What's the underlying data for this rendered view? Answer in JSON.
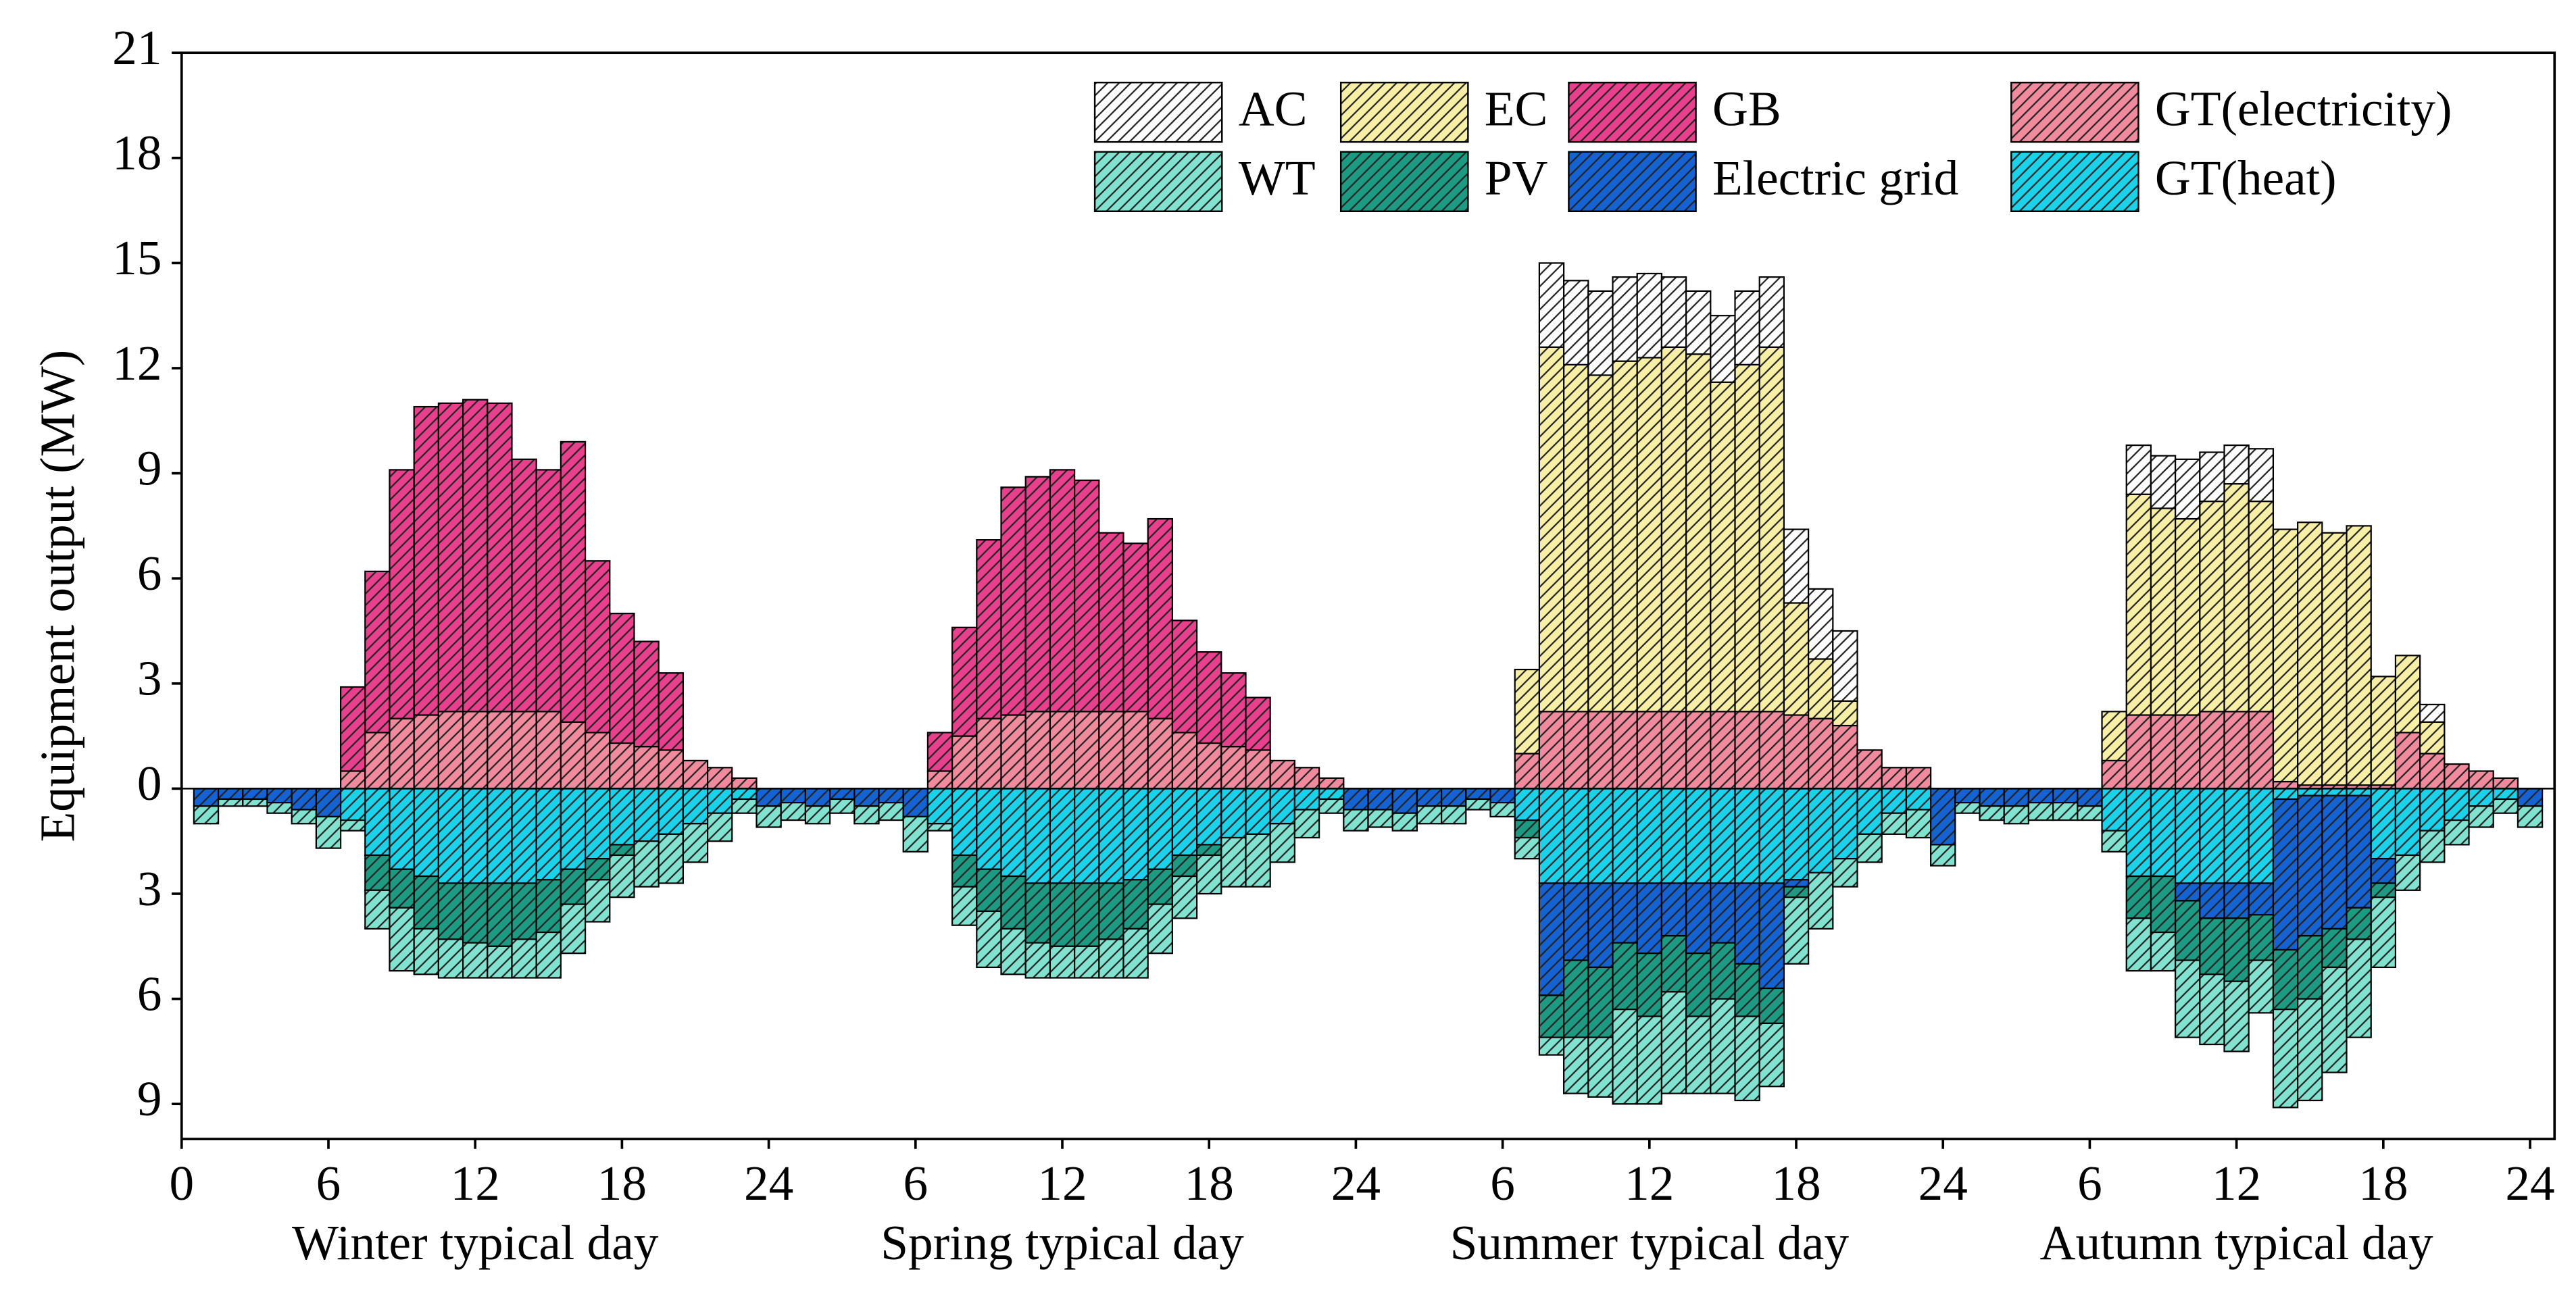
{
  "chart_data": {
    "type": "stacked_bar",
    "ylabel": "Equipment output (MW)",
    "day_labels": [
      "Winter typical day",
      "Spring typical day",
      "Summer typical day",
      "Autumn typical day"
    ],
    "xlim": [
      0,
      97
    ],
    "ylim": [
      -10,
      21
    ],
    "xticks": [
      0,
      6,
      12,
      18,
      24,
      {
        "value": 30,
        "label": "6"
      },
      {
        "value": 36,
        "label": "12"
      },
      {
        "value": 42,
        "label": "18"
      },
      {
        "value": 48,
        "label": "24"
      },
      {
        "value": 54,
        "label": "6"
      },
      {
        "value": 60,
        "label": "12"
      },
      {
        "value": 66,
        "label": "18"
      },
      {
        "value": 72,
        "label": "24"
      },
      {
        "value": 78,
        "label": "6"
      },
      {
        "value": 84,
        "label": "12"
      },
      {
        "value": 90,
        "label": "18"
      },
      {
        "value": 96,
        "label": "24"
      }
    ],
    "yticks": [
      {
        "value": -9,
        "label": "9"
      },
      {
        "value": -6,
        "label": "6"
      },
      {
        "value": -3,
        "label": "3"
      },
      0,
      3,
      6,
      9,
      12,
      15,
      18,
      21
    ],
    "x": [
      1,
      2,
      3,
      4,
      5,
      6,
      7,
      8,
      9,
      10,
      11,
      12,
      13,
      14,
      15,
      16,
      17,
      18,
      19,
      20,
      21,
      22,
      23,
      24,
      25,
      26,
      27,
      28,
      29,
      30,
      31,
      32,
      33,
      34,
      35,
      36,
      37,
      38,
      39,
      40,
      41,
      42,
      43,
      44,
      45,
      46,
      47,
      48,
      49,
      50,
      51,
      52,
      53,
      54,
      55,
      56,
      57,
      58,
      59,
      60,
      61,
      62,
      63,
      64,
      65,
      66,
      67,
      68,
      69,
      70,
      71,
      72,
      73,
      74,
      75,
      76,
      77,
      78,
      79,
      80,
      81,
      82,
      83,
      84,
      85,
      86,
      87,
      88,
      89,
      90,
      91,
      92,
      93,
      94,
      95,
      96
    ],
    "legend": "upper right",
    "series": [
      {
        "name": "AC",
        "color": "#ffffff",
        "stack": "positive",
        "values": [
          0,
          0,
          0,
          0,
          0,
          0,
          0,
          0,
          0,
          0,
          0,
          0,
          0,
          0,
          0,
          0,
          0,
          0,
          0,
          0,
          0,
          0,
          0,
          0,
          0,
          0,
          0,
          0,
          0,
          0,
          0,
          0,
          0,
          0,
          0,
          0,
          0,
          0,
          0,
          0,
          0,
          0,
          0,
          0,
          0,
          0,
          0,
          0,
          0,
          0,
          0,
          0,
          0,
          0,
          0,
          2.4,
          2.4,
          2.4,
          2.4,
          2.4,
          2.0,
          1.8,
          1.9,
          2.1,
          2.0,
          2.1,
          2.0,
          2.0,
          0,
          0,
          0,
          0,
          0,
          0,
          0,
          0,
          0,
          0,
          0,
          1.4,
          1.5,
          1.7,
          1.4,
          1.1,
          1.5,
          0,
          0,
          0,
          0,
          0,
          0,
          0.5,
          0,
          0,
          0,
          0
        ]
      },
      {
        "name": "EC",
        "color": "#f7efa6",
        "stack": "positive",
        "values": [
          0,
          0,
          0,
          0,
          0,
          0,
          0,
          0,
          0,
          0,
          0,
          0,
          0,
          0,
          0,
          0,
          0,
          0,
          0,
          0,
          0,
          0,
          0,
          0,
          0,
          0,
          0,
          0,
          0,
          0,
          0,
          0,
          0,
          0,
          0,
          0,
          0,
          0,
          0,
          0,
          0,
          0,
          0,
          0,
          0,
          0,
          0,
          0,
          0,
          0,
          0,
          0,
          0,
          0,
          2.4,
          10.4,
          9.9,
          9.6,
          10.0,
          10.1,
          10.4,
          10.2,
          9.4,
          9.9,
          10.4,
          3.2,
          1.7,
          0.7,
          0,
          0,
          0,
          0,
          0,
          0,
          0,
          0,
          0,
          0,
          1.4,
          6.3,
          5.9,
          5.6,
          6.0,
          6.5,
          6.0,
          7.2,
          7.5,
          7.2,
          7.4,
          3.1,
          2.2,
          0.9,
          0,
          0,
          0,
          0
        ]
      },
      {
        "name": "GB",
        "color": "#e8408c",
        "stack": "positive",
        "values": [
          0,
          0,
          0,
          0,
          0,
          0,
          2.4,
          4.6,
          7.1,
          8.8,
          8.8,
          8.9,
          8.8,
          7.2,
          6.9,
          8.0,
          4.9,
          3.7,
          3.0,
          2.2,
          0,
          0,
          0,
          0,
          0,
          0,
          0,
          0,
          0,
          0,
          1.1,
          3.1,
          5.1,
          6.5,
          6.7,
          6.9,
          6.6,
          5.1,
          4.8,
          5.7,
          3.2,
          2.6,
          2.1,
          1.5,
          0,
          0,
          0,
          0,
          0,
          0,
          0,
          0,
          0,
          0,
          0,
          0,
          0,
          0,
          0,
          0,
          0,
          0,
          0,
          0,
          0,
          0,
          0,
          0,
          0,
          0,
          0,
          0,
          0,
          0,
          0,
          0,
          0,
          0,
          0,
          0,
          0,
          0,
          0,
          0,
          0,
          0,
          0,
          0,
          0,
          0,
          0,
          0,
          0,
          0,
          0,
          0
        ]
      },
      {
        "name": "GT(electricity)",
        "color": "#f08a9c",
        "stack": "positive",
        "values": [
          0,
          0,
          0,
          0,
          0,
          0,
          0.5,
          1.6,
          2.0,
          2.1,
          2.2,
          2.2,
          2.2,
          2.2,
          2.2,
          1.9,
          1.6,
          1.3,
          1.2,
          1.1,
          0.8,
          0.6,
          0.3,
          0,
          0,
          0,
          0,
          0,
          0,
          0,
          0.5,
          1.5,
          2.0,
          2.1,
          2.2,
          2.2,
          2.2,
          2.2,
          2.2,
          2.0,
          1.6,
          1.3,
          1.2,
          1.1,
          0.8,
          0.6,
          0.3,
          0,
          0,
          0,
          0,
          0,
          0,
          0,
          1.0,
          2.2,
          2.2,
          2.2,
          2.2,
          2.2,
          2.2,
          2.2,
          2.2,
          2.2,
          2.2,
          2.1,
          2.0,
          1.8,
          1.1,
          0.6,
          0.6,
          0,
          0,
          0,
          0,
          0,
          0,
          0,
          0.8,
          2.1,
          2.1,
          2.1,
          2.2,
          2.2,
          2.2,
          0.2,
          0.1,
          0.1,
          0.1,
          0.1,
          1.6,
          1.0,
          0.7,
          0.5,
          0.3,
          0
        ]
      },
      {
        "name": "WT",
        "color": "#80e2cf",
        "stack": "negative",
        "values": [
          -0.5,
          -0.2,
          -0.2,
          -0.3,
          -0.4,
          -0.9,
          -0.3,
          -1.1,
          -1.8,
          -1.3,
          -1.1,
          -1.0,
          -0.9,
          -1.1,
          -1.3,
          -1.4,
          -1.2,
          -1.2,
          -1.3,
          -1.4,
          -1.1,
          -0.8,
          -0.4,
          -0.6,
          -0.5,
          -0.5,
          -0.4,
          -0.5,
          -0.5,
          -1.0,
          -0.2,
          -1.1,
          -1.6,
          -1.3,
          -1.0,
          -0.9,
          -0.9,
          -1.1,
          -1.4,
          -1.4,
          -1.2,
          -1.1,
          -1.4,
          -1.5,
          -1.1,
          -0.8,
          -0.4,
          -0.6,
          -0.5,
          -0.5,
          -0.5,
          -0.5,
          -0.3,
          -0.4,
          -0.6,
          -0.5,
          -1.6,
          -1.7,
          -2.7,
          -2.5,
          -2.9,
          -2.2,
          -2.7,
          -2.4,
          -1.8,
          -1.9,
          -1.6,
          -0.8,
          -0.8,
          -0.6,
          -0.8,
          -0.6,
          -0.3,
          -0.4,
          -0.5,
          -0.5,
          -0.5,
          -0.4,
          -0.6,
          -1.5,
          -1.1,
          -2.2,
          -2.0,
          -2.0,
          -1.5,
          -2.8,
          -2.9,
          -3.0,
          -2.8,
          -2.0,
          -1.0,
          -0.9,
          -0.7,
          -0.6,
          -0.4,
          -0.6
        ]
      },
      {
        "name": "PV",
        "color": "#1c9a82",
        "stack": "negative",
        "values": [
          0,
          0,
          0,
          0,
          0,
          0,
          0,
          -1.0,
          -1.1,
          -1.5,
          -1.6,
          -1.7,
          -1.8,
          -1.6,
          -1.5,
          -1.0,
          -0.6,
          -0.3,
          0,
          0,
          0,
          0,
          0,
          0,
          0,
          0,
          0,
          0,
          0,
          0,
          0,
          -0.9,
          -1.2,
          -1.5,
          -1.7,
          -1.8,
          -1.8,
          -1.6,
          -1.4,
          -1.0,
          -0.6,
          -0.3,
          0,
          0,
          0,
          0,
          0,
          0,
          0,
          0,
          0,
          0,
          0,
          0,
          -0.5,
          -1.2,
          -2.2,
          -2.0,
          -1.9,
          -1.8,
          -1.6,
          -1.8,
          -1.6,
          -1.5,
          -1.0,
          -0.3,
          0,
          0,
          0,
          0,
          0,
          0,
          0,
          0,
          0,
          0,
          0,
          0,
          0,
          -1.2,
          -1.6,
          -1.7,
          -1.6,
          -1.8,
          -1.3,
          -1.7,
          -1.8,
          -1.1,
          -0.9,
          -0.4,
          0,
          0,
          0,
          0,
          0,
          0
        ]
      },
      {
        "name": "Electric grid",
        "color": "#1562d2",
        "stack": "negative",
        "values": [
          -0.5,
          -0.3,
          -0.3,
          -0.4,
          -0.6,
          -0.8,
          0,
          0,
          0,
          0,
          0,
          0,
          0,
          0,
          0,
          0,
          0,
          0,
          0,
          0,
          0,
          0,
          0,
          -0.5,
          -0.4,
          -0.5,
          -0.3,
          -0.5,
          -0.4,
          -0.8,
          0,
          0,
          0,
          0,
          0,
          0,
          0,
          0,
          0,
          0,
          0,
          0,
          0,
          0,
          0,
          0,
          0,
          -0.6,
          -0.6,
          -0.7,
          -0.5,
          -0.5,
          -0.3,
          -0.4,
          0,
          -3.2,
          -2.2,
          -2.4,
          -1.7,
          -2.0,
          -1.5,
          -2.0,
          -1.7,
          -2.3,
          -3.0,
          -0.2,
          0,
          0,
          0,
          0,
          0,
          -1.6,
          -0.4,
          -0.5,
          -0.5,
          -0.4,
          -0.4,
          -0.5,
          0,
          0,
          0,
          -0.5,
          -1.0,
          -1.0,
          -0.9,
          -4.3,
          -4.0,
          -3.8,
          -3.2,
          -0.7,
          0,
          0,
          0,
          0,
          0,
          -0.5
        ]
      },
      {
        "name": "GT(heat)",
        "color": "#1ad2ea",
        "stack": "negative",
        "values": [
          0,
          0,
          0,
          0,
          0,
          0,
          -0.9,
          -1.9,
          -2.3,
          -2.5,
          -2.7,
          -2.7,
          -2.7,
          -2.7,
          -2.6,
          -2.3,
          -2.0,
          -1.6,
          -1.5,
          -1.3,
          -1.0,
          -0.7,
          -0.3,
          0,
          0,
          0,
          0,
          0,
          0,
          0,
          -1.0,
          -1.9,
          -2.3,
          -2.5,
          -2.7,
          -2.7,
          -2.7,
          -2.7,
          -2.6,
          -2.3,
          -1.9,
          -1.6,
          -1.4,
          -1.3,
          -1.0,
          -0.6,
          -0.3,
          0,
          0,
          0,
          0,
          0,
          0,
          0,
          -0.9,
          -2.7,
          -2.7,
          -2.7,
          -2.7,
          -2.7,
          -2.7,
          -2.7,
          -2.7,
          -2.7,
          -2.7,
          -2.6,
          -2.4,
          -2.0,
          -1.3,
          -0.7,
          -0.6,
          0,
          0,
          0,
          0,
          0,
          0,
          0,
          -1.2,
          -2.5,
          -2.5,
          -2.7,
          -2.7,
          -2.7,
          -2.7,
          -0.3,
          -0.2,
          -0.2,
          -0.2,
          -2.0,
          -1.9,
          -1.2,
          -0.9,
          -0.5,
          -0.3,
          0
        ]
      }
    ]
  }
}
